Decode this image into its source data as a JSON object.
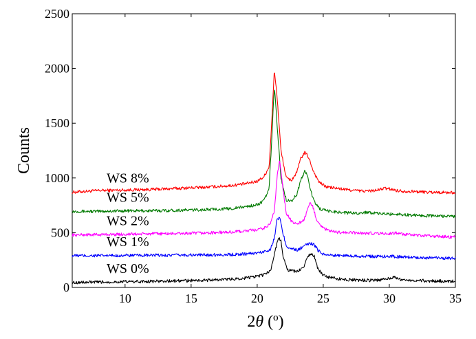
{
  "chart_data": {
    "type": "line",
    "title": "",
    "xlabel_prefix": "2",
    "xlabel_theta": "θ",
    "xlabel_suffix": " (º)",
    "ylabel": "Counts",
    "xlim": [
      6,
      35
    ],
    "ylim": [
      0,
      2500
    ],
    "xticks": [
      10,
      15,
      20,
      25,
      30,
      35
    ],
    "yticks": [
      0,
      500,
      1000,
      1500,
      2000,
      2500
    ],
    "grid": false,
    "legend": "none",
    "series": [
      {
        "name": "WS 8%",
        "color": "#ff0000",
        "x": [
          6,
          8,
          10,
          12,
          14,
          16,
          18,
          19,
          20,
          20.5,
          20.9,
          21.1,
          21.3,
          21.5,
          21.8,
          22.2,
          22.6,
          23,
          23.3,
          23.6,
          23.8,
          24,
          24.3,
          24.7,
          25.2,
          26,
          27,
          28,
          29,
          29.6,
          30,
          30.6,
          31,
          32,
          33,
          34,
          35
        ],
        "y": [
          870,
          885,
          890,
          895,
          905,
          915,
          930,
          945,
          970,
          1010,
          1100,
          1500,
          1990,
          1750,
          1250,
          1000,
          980,
          1050,
          1180,
          1230,
          1210,
          1150,
          1050,
          960,
          920,
          905,
          890,
          880,
          885,
          905,
          900,
          885,
          880,
          875,
          870,
          868,
          865
        ]
      },
      {
        "name": "WS 5%",
        "color": "#007a00",
        "x": [
          6,
          8,
          10,
          12,
          14,
          16,
          18,
          19,
          20,
          20.5,
          20.9,
          21.1,
          21.3,
          21.5,
          21.8,
          22.2,
          22.6,
          23,
          23.3,
          23.6,
          23.8,
          24,
          24.3,
          24.7,
          25.2,
          26,
          27,
          28,
          28.4,
          29,
          30,
          30.5,
          31,
          32,
          33,
          34,
          35
        ],
        "y": [
          695,
          695,
          700,
          700,
          705,
          710,
          720,
          735,
          755,
          790,
          900,
          1350,
          1840,
          1500,
          1000,
          800,
          790,
          850,
          980,
          1060,
          1030,
          900,
          790,
          720,
          700,
          690,
          680,
          680,
          690,
          675,
          670,
          672,
          665,
          660,
          655,
          652,
          650
        ]
      },
      {
        "name": "WS 2%",
        "color": "#ff00ff",
        "x": [
          6,
          8,
          10,
          12,
          14,
          16,
          18,
          19,
          20,
          20.5,
          21,
          21.3,
          21.5,
          21.7,
          21.9,
          22.2,
          22.6,
          23,
          23.5,
          23.8,
          24,
          24.2,
          24.5,
          25,
          25.5,
          26,
          27,
          28,
          29,
          30,
          30.5,
          31,
          32,
          33,
          34,
          35
        ],
        "y": [
          480,
          482,
          485,
          490,
          492,
          497,
          505,
          515,
          525,
          540,
          580,
          700,
          1000,
          1180,
          950,
          680,
          600,
          580,
          610,
          700,
          770,
          740,
          620,
          540,
          515,
          505,
          500,
          495,
          495,
          490,
          500,
          485,
          475,
          470,
          465,
          460
        ]
      },
      {
        "name": "WS 1%",
        "color": "#0000ff",
        "x": [
          6,
          8,
          10,
          12,
          14,
          16,
          18,
          19,
          20,
          20.5,
          21,
          21.3,
          21.5,
          21.7,
          21.9,
          22.2,
          22.6,
          23,
          23.5,
          23.8,
          24,
          24.3,
          24.6,
          25,
          25.5,
          26,
          27,
          28,
          29,
          30,
          31,
          32,
          33,
          34,
          35
        ],
        "y": [
          290,
          290,
          292,
          293,
          295,
          297,
          300,
          305,
          315,
          325,
          350,
          450,
          620,
          640,
          520,
          380,
          355,
          340,
          370,
          395,
          405,
          390,
          340,
          305,
          295,
          292,
          290,
          285,
          282,
          285,
          278,
          275,
          270,
          268,
          265
        ]
      },
      {
        "name": "WS 0%",
        "color": "#000000",
        "x": [
          6,
          8,
          10,
          12,
          14,
          16,
          18,
          19,
          20,
          20.5,
          21,
          21.3,
          21.6,
          21.8,
          22,
          22.3,
          22.6,
          23,
          23.5,
          23.8,
          24,
          24.3,
          24.6,
          25,
          25.5,
          26,
          27,
          28,
          29,
          30,
          30.3,
          31,
          32,
          33,
          34,
          35
        ],
        "y": [
          45,
          48,
          52,
          55,
          60,
          65,
          75,
          85,
          100,
          115,
          150,
          300,
          460,
          420,
          260,
          160,
          150,
          145,
          180,
          270,
          305,
          290,
          170,
          110,
          90,
          80,
          70,
          65,
          65,
          80,
          95,
          70,
          65,
          60,
          58,
          55
        ]
      }
    ]
  }
}
